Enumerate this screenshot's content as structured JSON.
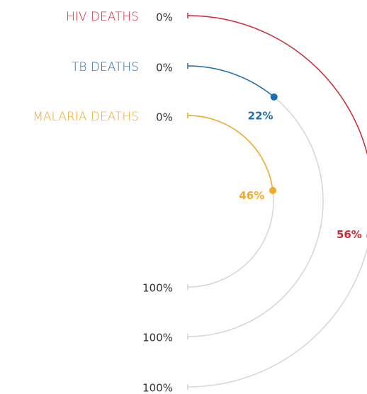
{
  "chart_data": {
    "type": "radial-bar",
    "ticks": [
      {
        "value": 0,
        "label": "0%"
      },
      {
        "value": 100,
        "label": "100%"
      }
    ],
    "track_color": "#d6d6d6",
    "series": [
      {
        "name": "HIV DEATHS",
        "color": "#cf2a3a",
        "values": [
          56
        ],
        "value_labels": [
          "56%"
        ]
      },
      {
        "name": "TB DEATHS",
        "color": "#1f6eb0",
        "values": [
          22
        ],
        "value_labels": [
          "22%"
        ]
      },
      {
        "name": "MALARIA DEATHS",
        "color": "#f4a826",
        "values": [
          46
        ],
        "value_labels": [
          "46%"
        ]
      }
    ]
  }
}
